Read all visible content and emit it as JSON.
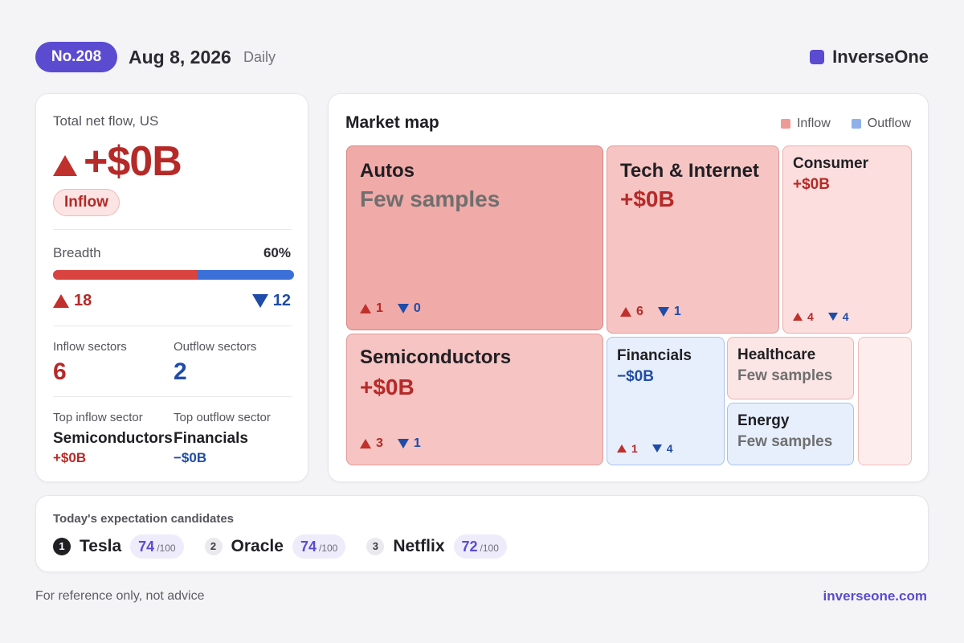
{
  "header": {
    "issue": "No.208",
    "date": "Aug 8, 2026",
    "frequency": "Daily",
    "brand": "InverseOne",
    "brand_color": "#5a4bd1"
  },
  "summary": {
    "label": "Total net flow, US",
    "amount": "+$0B",
    "direction_icon": "triangle-up-icon",
    "badge": "Inflow",
    "breadth_label": "Breadth",
    "breadth_pct": "60%",
    "breadth_fraction": 0.6,
    "up_count": "18",
    "down_count": "12",
    "inflow_sectors_label": "Inflow sectors",
    "inflow_sectors": "6",
    "outflow_sectors_label": "Outflow sectors",
    "outflow_sectors": "2",
    "top_inflow_label": "Top inflow sector",
    "top_inflow_name": "Semiconductors",
    "top_inflow_amount": "+$0B",
    "top_outflow_label": "Top outflow sector",
    "top_outflow_name": "Financials",
    "top_outflow_amount": "−$0B"
  },
  "market_map": {
    "title": "Market map",
    "legend_inflow": "Inflow",
    "legend_outflow": "Outflow",
    "inflow_color": "#ee9b98",
    "outflow_color": "#8fb0ea",
    "tiles": {
      "autos": {
        "name": "Autos",
        "value": "Few samples",
        "up": "1",
        "down": "0"
      },
      "tech": {
        "name": "Tech & Internet",
        "value": "+$0B",
        "up": "6",
        "down": "1"
      },
      "consumer": {
        "name": "Consumer",
        "value": "+$0B",
        "up": "4",
        "down": "4"
      },
      "semis": {
        "name": "Semiconductors",
        "value": "+$0B",
        "up": "3",
        "down": "1"
      },
      "financials": {
        "name": "Financials",
        "value": "−$0B",
        "up": "1",
        "down": "4"
      },
      "healthcare": {
        "name": "Healthcare",
        "value": "Few samples"
      },
      "energy": {
        "name": "Energy",
        "value": "Few samples"
      }
    }
  },
  "candidates": {
    "title": "Today's expectation candidates",
    "items": [
      {
        "rank": "1",
        "name": "Tesla",
        "score": "74",
        "denom": "/100"
      },
      {
        "rank": "2",
        "name": "Oracle",
        "score": "74",
        "denom": "/100"
      },
      {
        "rank": "3",
        "name": "Netflix",
        "score": "72",
        "denom": "/100"
      }
    ]
  },
  "footer": {
    "disclaimer": "For reference only, not advice",
    "site": "inverseone.com"
  }
}
